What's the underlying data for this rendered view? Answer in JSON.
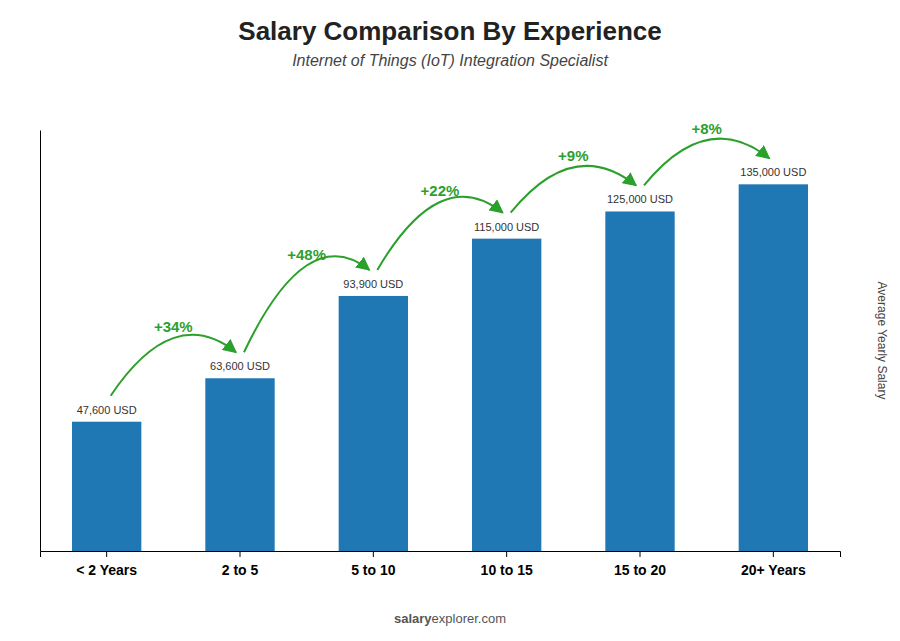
{
  "chart_data": {
    "type": "bar",
    "title": "Salary Comparison By Experience",
    "subtitle": "Internet of Things (IoT) Integration Specialist",
    "ylabel": "Average Yearly Salary",
    "categories": [
      "< 2 Years",
      "2 to 5",
      "5 to 10",
      "10 to 15",
      "15 to 20",
      "20+ Years"
    ],
    "values": [
      47600,
      63600,
      93900,
      115000,
      125000,
      135000
    ],
    "value_labels": [
      "47,600 USD",
      "63,600 USD",
      "93,900 USD",
      "115,000 USD",
      "125,000 USD",
      "135,000 USD"
    ],
    "data_labels": true,
    "annotations": [
      "+34%",
      "+48%",
      "+22%",
      "+9%",
      "+8%"
    ],
    "footer": [
      "salary",
      "explorer.com"
    ],
    "ylim": [
      0,
      155000
    ],
    "tick_labels": "x",
    "grid": false
  }
}
